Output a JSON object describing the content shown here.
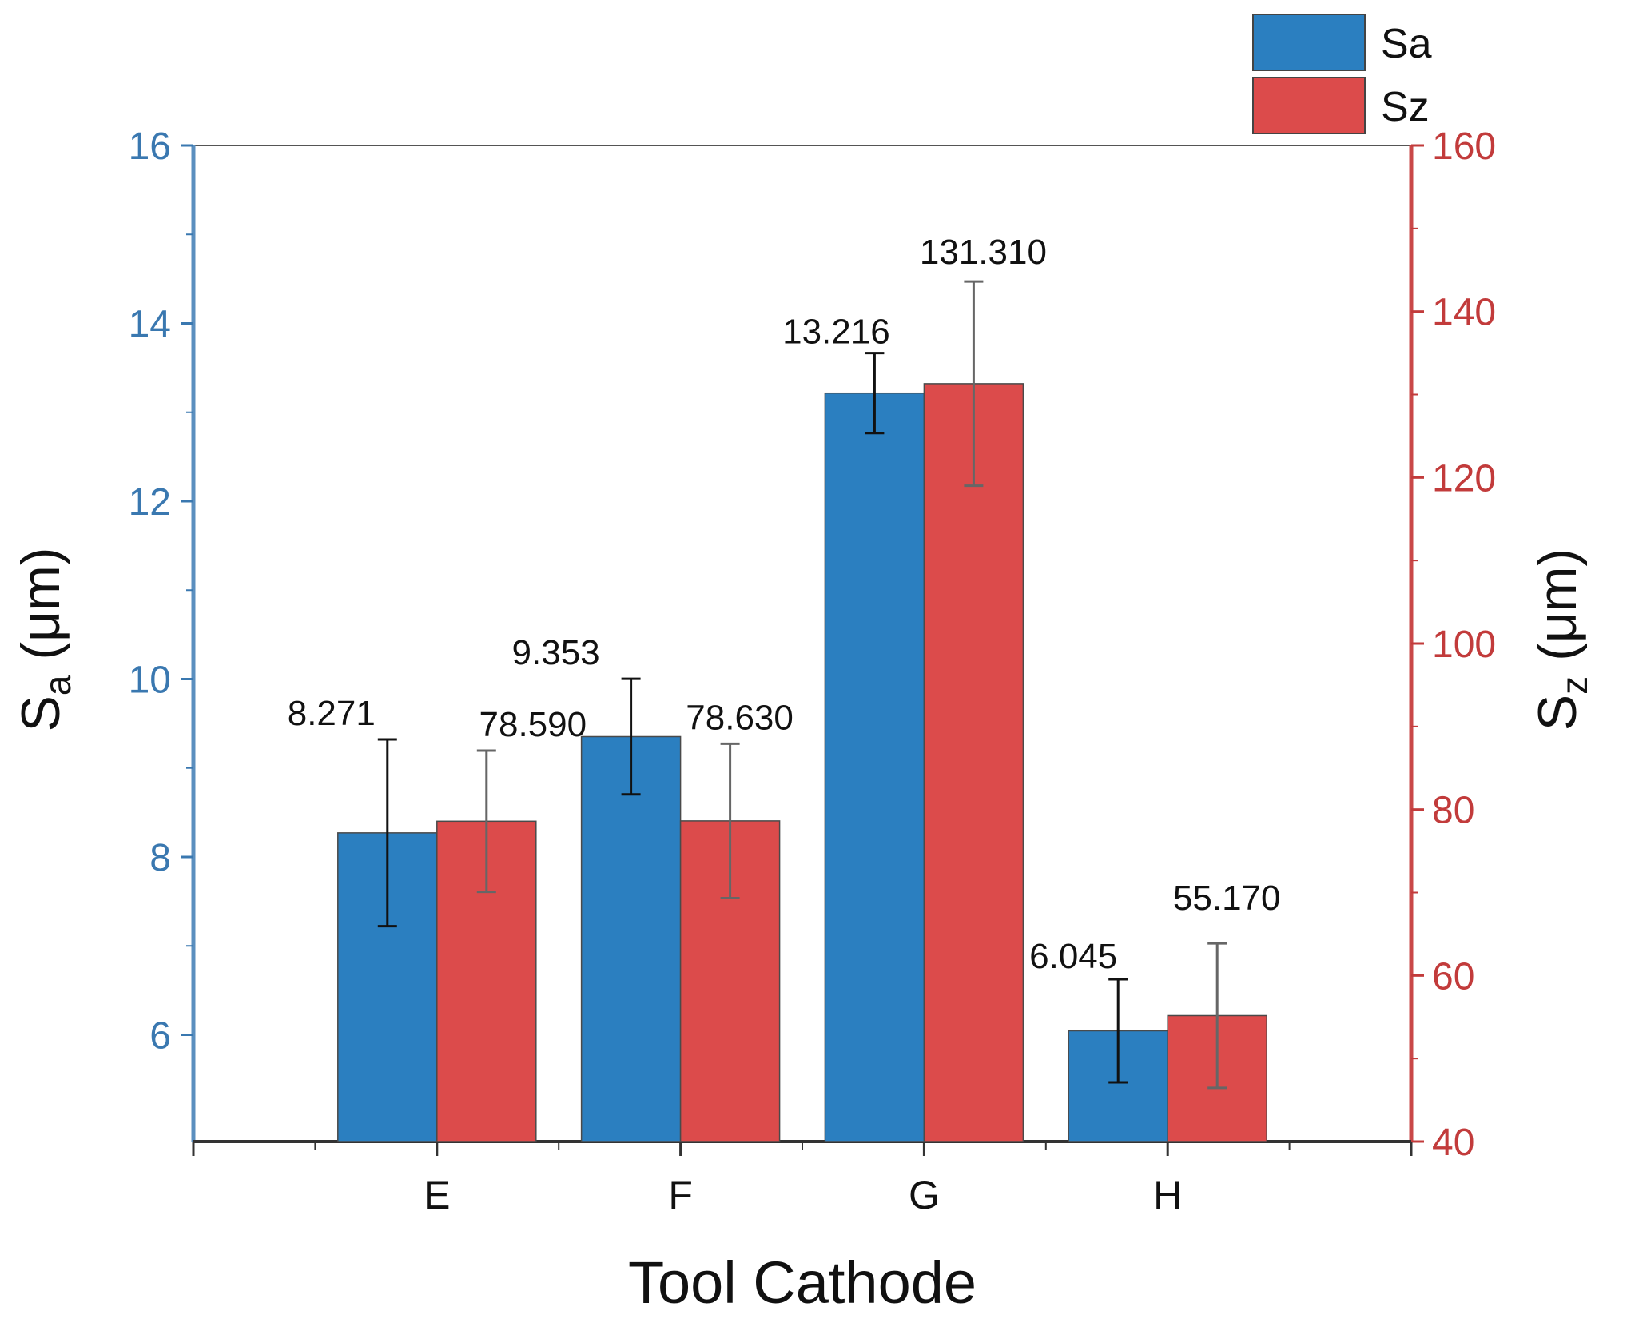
{
  "chart_data": {
    "type": "bar",
    "xlabel": "Tool Cathode",
    "categories": [
      "E",
      "F",
      "G",
      "H"
    ],
    "y_left": {
      "label_main": "S",
      "label_sub": "a",
      "label_unit": "(μm)",
      "ylim": [
        4.8,
        16
      ],
      "ticks": [
        6,
        8,
        10,
        12,
        14,
        16
      ],
      "color": "#3a78b0"
    },
    "y_right": {
      "label_main": "S",
      "label_sub": "z",
      "label_unit": "(μm)",
      "ylim": [
        40,
        160
      ],
      "ticks": [
        40,
        60,
        80,
        100,
        120,
        140,
        160
      ],
      "color": "#c23b3b"
    },
    "series": [
      {
        "name": "Sa",
        "axis": "left",
        "color": "#2b7fc0",
        "values": [
          8.271,
          9.353,
          13.216,
          6.045
        ],
        "value_labels": [
          "8.271",
          "9.353",
          "13.216",
          "6.045"
        ],
        "error": [
          1.05,
          0.65,
          0.45,
          0.58
        ]
      },
      {
        "name": "Sz",
        "axis": "right",
        "color": "#dc4b4b",
        "values": [
          78.59,
          78.63,
          131.31,
          55.17
        ],
        "value_labels": [
          "78.590",
          "78.630",
          "131.310",
          "55.170"
        ],
        "error": [
          8.5,
          9.3,
          12.3,
          8.7
        ]
      }
    ],
    "legend": {
      "position": "top-right",
      "entries": [
        "Sa",
        "Sz"
      ]
    },
    "grid": false
  }
}
